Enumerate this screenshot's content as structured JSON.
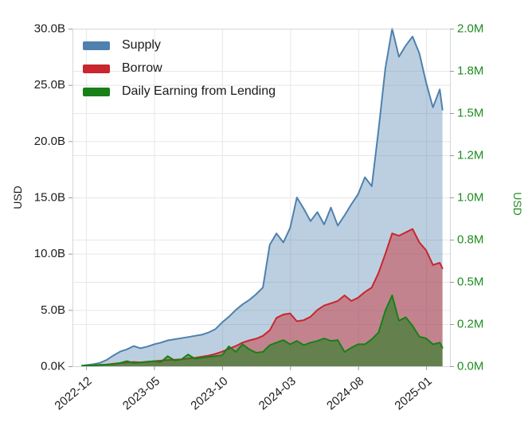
{
  "chart_data": {
    "type": "area",
    "title": "",
    "grid": true,
    "legend_position": "top-left",
    "background": "#ffffff",
    "x_axis": {
      "unit": "months_from_2022-11",
      "range": [
        0,
        27.75
      ],
      "tick_positions": [
        1,
        6,
        11,
        16,
        21,
        26
      ],
      "tick_labels": [
        "2022-12",
        "2023-05",
        "2023-10",
        "2024-03",
        "2024-08",
        "2025-01"
      ],
      "tick_label_angle_deg": -40
    },
    "left_axis": {
      "title": "USD",
      "unit": "billions of USD",
      "range": [
        0,
        30
      ],
      "tick_values": [
        0,
        5,
        10,
        15,
        20,
        25,
        30
      ],
      "tick_labels": [
        "0.0K",
        "5.0B",
        "10.0B",
        "15.0B",
        "20.0B",
        "25.0B",
        "30.0B"
      ],
      "text_color": "#1c1c1c"
    },
    "right_axis": {
      "title": "USD",
      "unit": "millions of USD",
      "range": [
        0,
        2
      ],
      "tick_values": [
        0,
        0.25,
        0.5,
        0.75,
        1,
        1.25,
        1.5,
        1.75,
        2
      ],
      "tick_labels": [
        "0.0M",
        "0.2M",
        "0.5M",
        "0.8M",
        "1.0M",
        "1.2M",
        "1.5M",
        "1.8M",
        "2.0M"
      ],
      "text_color": "#1d8c1d"
    },
    "x": [
      0.7,
      1,
      1.5,
      2,
      2.5,
      3,
      3.5,
      4,
      4.5,
      5,
      5.5,
      6,
      6.5,
      7,
      7.5,
      8,
      8.5,
      9,
      9.5,
      10,
      10.5,
      11,
      11.5,
      12,
      12.5,
      13,
      13.5,
      14,
      14.5,
      15,
      15.5,
      16,
      16.5,
      17,
      17.5,
      18,
      18.5,
      19,
      19.5,
      20,
      20.5,
      21,
      21.5,
      22,
      22.5,
      23,
      23.5,
      24,
      24.5,
      25,
      25.5,
      26,
      26.5,
      27,
      27.2
    ],
    "series": [
      {
        "name": "Supply",
        "axis": "left",
        "color": "#4e81ae",
        "fill_opacity": 0.38,
        "values": [
          0.05,
          0.1,
          0.18,
          0.3,
          0.55,
          0.95,
          1.3,
          1.5,
          1.8,
          1.6,
          1.75,
          1.95,
          2.1,
          2.3,
          2.4,
          2.5,
          2.6,
          2.7,
          2.8,
          3.0,
          3.3,
          3.9,
          4.4,
          5.0,
          5.5,
          5.9,
          6.4,
          7.0,
          10.8,
          11.8,
          11.0,
          12.3,
          15.0,
          14.0,
          12.9,
          13.7,
          12.6,
          14.1,
          12.5,
          13.4,
          14.4,
          15.3,
          16.8,
          16.0,
          21.0,
          26.5,
          30.0,
          27.5,
          28.5,
          29.3,
          27.8,
          25.2,
          23.0,
          24.6,
          22.8
        ]
      },
      {
        "name": "Borrow",
        "axis": "left",
        "color": "#c9262d",
        "fill_opacity": 0.45,
        "values": [
          0.01,
          0.03,
          0.06,
          0.1,
          0.15,
          0.22,
          0.28,
          0.33,
          0.38,
          0.35,
          0.4,
          0.45,
          0.5,
          0.55,
          0.58,
          0.62,
          0.68,
          0.75,
          0.85,
          0.95,
          1.1,
          1.3,
          1.55,
          1.8,
          2.1,
          2.3,
          2.45,
          2.7,
          3.2,
          4.3,
          4.6,
          4.7,
          4.0,
          4.1,
          4.4,
          5.0,
          5.4,
          5.6,
          5.8,
          6.3,
          5.8,
          6.1,
          6.6,
          7.0,
          8.3,
          10.0,
          11.8,
          11.6,
          11.9,
          12.2,
          11.0,
          10.3,
          9.0,
          9.2,
          8.7
        ]
      },
      {
        "name": "Daily Earning from Lending",
        "axis": "right",
        "color": "#178017",
        "fill_opacity": 0.55,
        "values": [
          0.003,
          0.005,
          0.006,
          0.008,
          0.01,
          0.012,
          0.02,
          0.03,
          0.02,
          0.022,
          0.026,
          0.03,
          0.025,
          0.06,
          0.035,
          0.04,
          0.07,
          0.045,
          0.05,
          0.055,
          0.06,
          0.065,
          0.118,
          0.085,
          0.13,
          0.1,
          0.08,
          0.085,
          0.125,
          0.14,
          0.155,
          0.13,
          0.15,
          0.125,
          0.14,
          0.15,
          0.165,
          0.15,
          0.155,
          0.085,
          0.11,
          0.13,
          0.13,
          0.16,
          0.2,
          0.33,
          0.42,
          0.27,
          0.29,
          0.24,
          0.175,
          0.165,
          0.13,
          0.14,
          0.11
        ]
      }
    ]
  }
}
